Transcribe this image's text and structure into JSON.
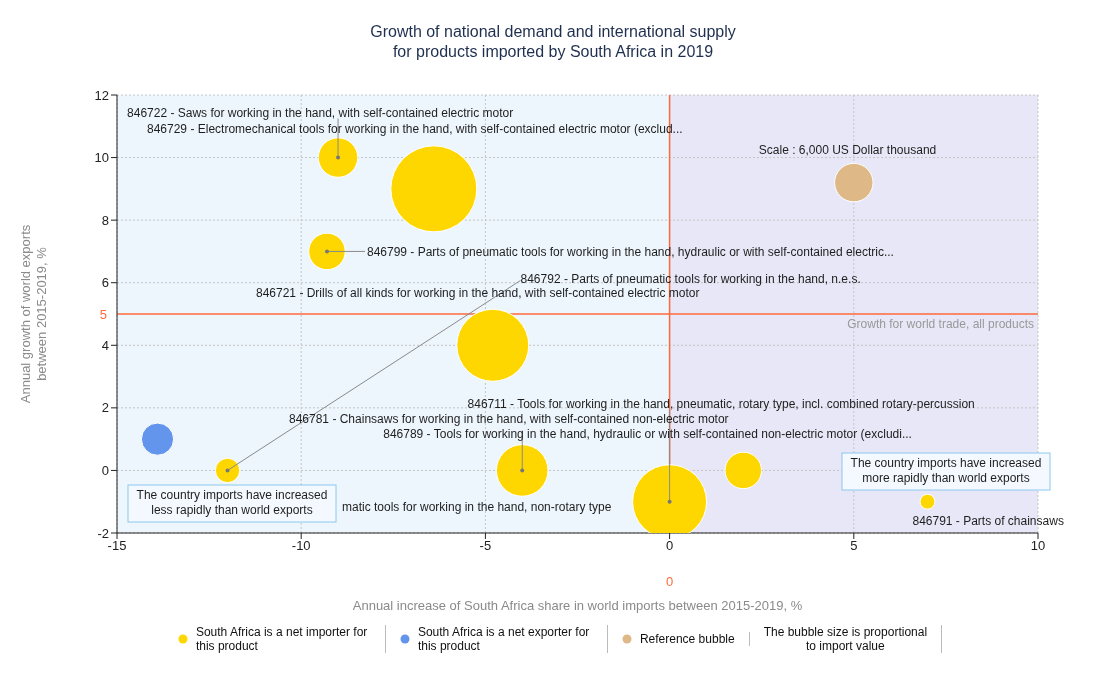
{
  "chart_data": {
    "type": "bubble",
    "title": "Growth of national demand and international supply\nfor products imported by South Africa in 2019",
    "xlabel": "Annual increase of South Africa share in world imports between 2015-2019, %",
    "ylabel": "Annual growth of world exports\nbetween 2015-2019, %",
    "series": [
      {
        "name": "South Africa is a net importer for this product",
        "color": "#ffd700",
        "x": [
          -9,
          -6.4,
          -9.3,
          -12,
          -4.8,
          0,
          2,
          -4,
          7
        ],
        "values": [
          10,
          9,
          7,
          0,
          4,
          -1,
          0,
          0,
          -1
        ],
        "sizes": [
          0.21,
          1,
          0.18,
          0.08,
          0.7,
          0.74,
          0.18,
          0.36,
          0.03
        ]
      },
      {
        "name": "South Africa is a net exporter for this product",
        "color": "#6495ed",
        "x": [
          -13.9
        ],
        "values": [
          1
        ],
        "sizes": [
          0.14
        ]
      },
      {
        "name": "Reference bubble",
        "color": "#deb887",
        "x": [
          5
        ],
        "values": [
          9.2
        ],
        "sizes": [
          0.2
        ]
      }
    ],
    "xlim": [
      -15,
      10
    ],
    "xticks": [
      -15,
      -10,
      -5,
      0,
      5,
      10
    ],
    "ylim": [
      -2,
      12
    ],
    "yticks": [
      -2,
      0,
      2,
      4,
      6,
      8,
      10,
      12
    ],
    "grid": true,
    "legend": "bottom",
    "ref_lines": [
      {
        "axis": "y",
        "value": 5,
        "label": "Growth for world trade, all products",
        "color": "#ff6a3d"
      },
      {
        "axis": "x",
        "value": 0,
        "color": "#ff6a3d"
      }
    ],
    "bands": [
      {
        "axis": "x",
        "from": -15,
        "to": 0,
        "color": "#eef6fd"
      },
      {
        "axis": "x",
        "from": 0,
        "to": 10,
        "color": "#e7e7f7"
      }
    ],
    "annotations": [
      {
        "text": "846722 - Saws for working in the hand, with self-contained electric motor",
        "x": -9,
        "y": 10
      },
      "846729 - Electromechanical tools for working in the hand, with self-contained electric motor (exclud...",
      {
        "text": "846799 - Parts of pneumatic tools for working in the hand, hydraulic or with self-contained electric...",
        "x": -9.3,
        "y": 7
      },
      {
        "text": "846792 - Parts of pneumatic tools for working in the hand, n.e.s.",
        "x": -12,
        "y": 0
      },
      "846721 - Drills of all kinds for working in the hand, with self-contained electric motor",
      {
        "text": "846711 - Tools for working in the hand, pneumatic, rotary type, incl. combined rotary-percussion",
        "x": 0,
        "y": -1
      },
      "846781 - Chainsaws for working in the hand, with self-contained non-electric motor",
      {
        "text": "846789 - Tools for working in the hand, hydraulic or with self-contained non-electric motor (excludi...",
        "x": -4,
        "y": 0
      },
      "matic tools for working in the hand, non-rotary type",
      {
        "text": "846791 - Parts of chainsaws",
        "x": 7,
        "y": -1
      },
      {
        "text": "Scale : 6,000 US Dollar thousand",
        "x": 5,
        "y": 9.2
      },
      "The country imports have increased\nless rapidly than world exports",
      "The country imports have increased\nmore rapidly than world exports",
      "The bubble size is proportional\nto import value",
      {
        "text": "5",
        "x": -15,
        "y": 5
      },
      "0"
    ]
  }
}
